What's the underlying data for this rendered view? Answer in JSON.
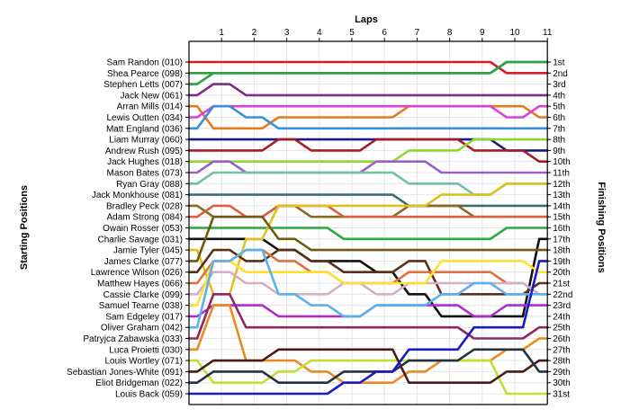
{
  "chart_data": {
    "type": "line",
    "title": "",
    "xlabel": "Laps",
    "ylabel_left": "Starting Positions",
    "ylabel_right": "Finishing Positions",
    "x": [
      0,
      1,
      2,
      3,
      4,
      5,
      6,
      7,
      8,
      9,
      10,
      11
    ],
    "x_tick_labels": [
      "1",
      "2",
      "3",
      "4",
      "5",
      "6",
      "7",
      "8",
      "9",
      "10",
      "11"
    ],
    "y_range": [
      1,
      31
    ],
    "y_inverted": true,
    "grid": true,
    "starting_labels": [
      "Sam Randon (010)",
      "Shea Pearce (098)",
      "Stephen Letts (007)",
      "Jack New (061)",
      "Arran Mills (014)",
      "Lewis Outten (034)",
      "Matt England (036)",
      "Liam Murray (060)",
      "Andrew Rush (095)",
      "Jack Hughes (018)",
      "Mason Bates (073)",
      "Ryan Gray (088)",
      "Jack Monkhouse (081)",
      "Bradley Peck (028)",
      "Adam Strong (084)",
      "Owain Rosser (053)",
      "Charlie Savage (031)",
      "Jamie Tyler (045)",
      "James Clarke (077)",
      "Lawrence Wilson (026)",
      "Matthew Hayes (066)",
      "Cassie Clarke (099)",
      "Samuel Tearne (038)",
      "Sam Edgeley (017)",
      "Oliver Graham (042)",
      "Patryjca Zabawska (033)",
      "Luca Proietti (030)",
      "Louis Wortley (071)",
      "Sebastian Jones-White (091)",
      "Eliot Bridgeman (022)",
      "Louis Back (059)"
    ],
    "finishing_labels": [
      "1st",
      "2nd",
      "3rd",
      "4th",
      "5th",
      "6th",
      "7th",
      "8th",
      "9th",
      "10th",
      "11th",
      "12th",
      "13th",
      "14th",
      "15th",
      "16th",
      "17th",
      "18th",
      "19th",
      "20th",
      "21st",
      "22nd",
      "23rd",
      "24th",
      "25th",
      "26th",
      "27th",
      "28th",
      "29th",
      "30th",
      "31st"
    ],
    "series": [
      {
        "color": "#d21e2d",
        "values": [
          1,
          1,
          1,
          1,
          1,
          1,
          1,
          1,
          1,
          1,
          2,
          2
        ]
      },
      {
        "color": "#2ea043",
        "values": [
          2,
          2,
          2,
          2,
          2,
          2,
          2,
          2,
          2,
          2,
          1,
          1
        ]
      },
      {
        "color": "#2ea043",
        "values": [
          3,
          2,
          2,
          2,
          2,
          2,
          2,
          2,
          2,
          2,
          1,
          1
        ]
      },
      {
        "color": "#7a2e84",
        "values": [
          4,
          3,
          4,
          4,
          4,
          4,
          4,
          4,
          4,
          4,
          4,
          4
        ]
      },
      {
        "color": "#e07c1e",
        "values": [
          5,
          7,
          7,
          6,
          6,
          6,
          6,
          5,
          5,
          5,
          5,
          6
        ]
      },
      {
        "color": "#d942d9",
        "values": [
          6,
          5,
          5,
          5,
          5,
          5,
          5,
          5,
          5,
          5,
          6,
          5
        ]
      },
      {
        "color": "#3a8fd6",
        "values": [
          7,
          5,
          6,
          7,
          7,
          7,
          7,
          7,
          7,
          7,
          7,
          7
        ]
      },
      {
        "color": "#1a1a80",
        "values": [
          8,
          8,
          8,
          8,
          8,
          8,
          8,
          8,
          8,
          8,
          9,
          9
        ]
      },
      {
        "color": "#a51c24",
        "values": [
          9,
          9,
          9,
          8,
          9,
          9,
          8,
          8,
          8,
          9,
          9,
          10
        ]
      },
      {
        "color": "#8ed82e",
        "values": [
          10,
          10,
          10,
          10,
          10,
          10,
          10,
          9,
          9,
          8,
          8,
          8
        ]
      },
      {
        "color": "#9a60c8",
        "values": [
          11,
          10,
          11,
          11,
          11,
          11,
          10,
          10,
          11,
          11,
          11,
          11
        ]
      },
      {
        "color": "#70c0a8",
        "values": [
          12,
          11,
          11,
          11,
          11,
          11,
          11,
          12,
          12,
          13,
          12,
          12
        ]
      },
      {
        "color": "#3c6e6e",
        "values": [
          13,
          13,
          13,
          13,
          13,
          13,
          13,
          14,
          14,
          14,
          14,
          14
        ]
      },
      {
        "color": "#8a6a20",
        "values": [
          14,
          15,
          15,
          14,
          15,
          15,
          15,
          14,
          14,
          15,
          15,
          15
        ]
      },
      {
        "color": "#d96040",
        "values": [
          15,
          14,
          15,
          14,
          14,
          15,
          15,
          15,
          15,
          15,
          15,
          15
        ]
      },
      {
        "color": "#2aaa40",
        "values": [
          16,
          16,
          16,
          16,
          16,
          17,
          17,
          17,
          17,
          17,
          16,
          16
        ]
      },
      {
        "color": "#111111",
        "values": [
          17,
          17,
          17,
          18,
          19,
          19,
          20,
          22,
          24,
          24,
          24,
          17
        ]
      },
      {
        "color": "#e0c020",
        "values": [
          18,
          22,
          17,
          14,
          14,
          14,
          14,
          14,
          13,
          13,
          12,
          12
        ]
      },
      {
        "color": "#6e5a10",
        "values": [
          19,
          15,
          15,
          17,
          18,
          18,
          18,
          18,
          18,
          18,
          18,
          18
        ]
      },
      {
        "color": "#5a3018",
        "values": [
          20,
          18,
          19,
          18,
          19,
          20,
          20,
          19,
          22,
          22,
          22,
          21
        ]
      },
      {
        "color": "#e07040",
        "values": [
          21,
          19,
          18,
          19,
          20,
          21,
          21,
          20,
          20,
          20,
          21,
          22
        ]
      },
      {
        "color": "#d4b0c8",
        "values": [
          22,
          20,
          21,
          22,
          22,
          21,
          22,
          21,
          21,
          21,
          21,
          22
        ]
      },
      {
        "color": "#ffe030",
        "values": [
          23,
          19,
          20,
          20,
          20,
          21,
          21,
          21,
          19,
          19,
          19,
          20
        ]
      },
      {
        "color": "#aa30cc",
        "values": [
          24,
          23,
          23,
          24,
          24,
          24,
          23,
          23,
          23,
          24,
          23,
          23
        ]
      },
      {
        "color": "#5ab0f0",
        "values": [
          25,
          19,
          18,
          22,
          23,
          24,
          23,
          23,
          22,
          21,
          22,
          22
        ]
      },
      {
        "color": "#8c2a60",
        "values": [
          26,
          22,
          25,
          25,
          25,
          25,
          25,
          25,
          25,
          26,
          26,
          25
        ]
      },
      {
        "color": "#eb8a22",
        "values": [
          27,
          23,
          28,
          28,
          29,
          30,
          30,
          29,
          28,
          28,
          27,
          26
        ]
      },
      {
        "color": "#c3e030",
        "values": [
          28,
          30,
          30,
          29,
          28,
          28,
          28,
          28,
          28,
          28,
          31,
          31
        ]
      },
      {
        "color": "#4a1a1a",
        "values": [
          29,
          28,
          28,
          27,
          27,
          27,
          27,
          30,
          30,
          30,
          29,
          28
        ]
      },
      {
        "color": "#253040",
        "values": [
          30,
          29,
          29,
          30,
          30,
          29,
          29,
          28,
          28,
          27,
          27,
          29
        ]
      },
      {
        "color": "#1a1acc",
        "values": [
          31,
          31,
          31,
          31,
          31,
          30,
          29,
          27,
          27,
          25,
          25,
          19
        ]
      }
    ]
  }
}
